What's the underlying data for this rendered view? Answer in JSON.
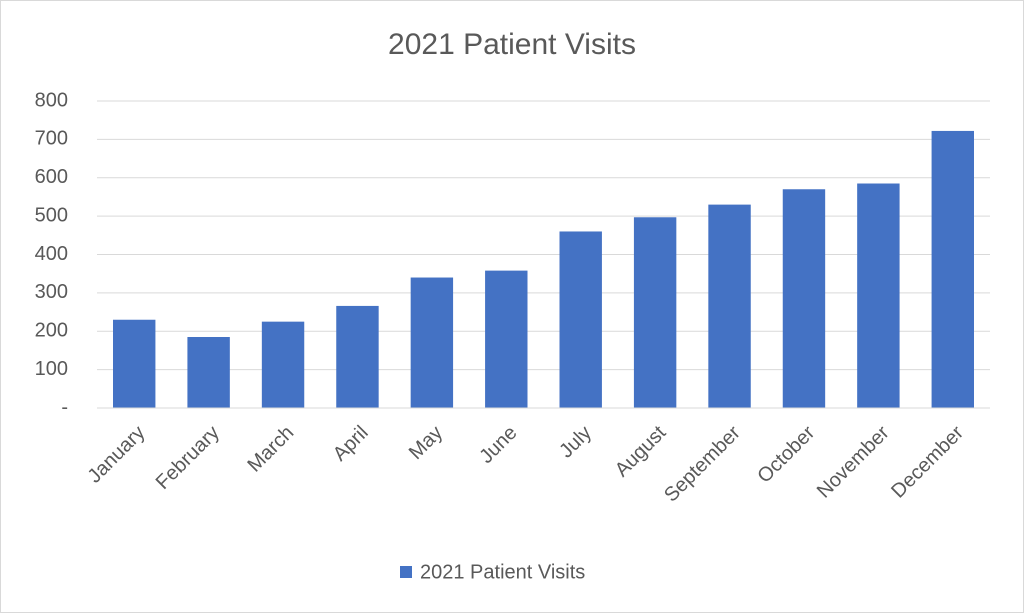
{
  "chart_data": {
    "type": "bar",
    "title": "2021 Patient Visits",
    "categories": [
      "January",
      "February",
      "March",
      "April",
      "May",
      "June",
      "July",
      "August",
      "September",
      "October",
      "November",
      "December"
    ],
    "series": [
      {
        "name": "2021 Patient Visits",
        "color": "#4472c4",
        "values": [
          230,
          185,
          225,
          266,
          340,
          358,
          460,
          497,
          530,
          570,
          585,
          722
        ]
      }
    ],
    "ylim": [
      0,
      800
    ],
    "yticks": [
      {
        "value": 0,
        "label": "-"
      },
      100,
      200,
      300,
      400,
      500,
      600,
      700,
      800
    ],
    "grid": true,
    "legend": "bottom"
  }
}
